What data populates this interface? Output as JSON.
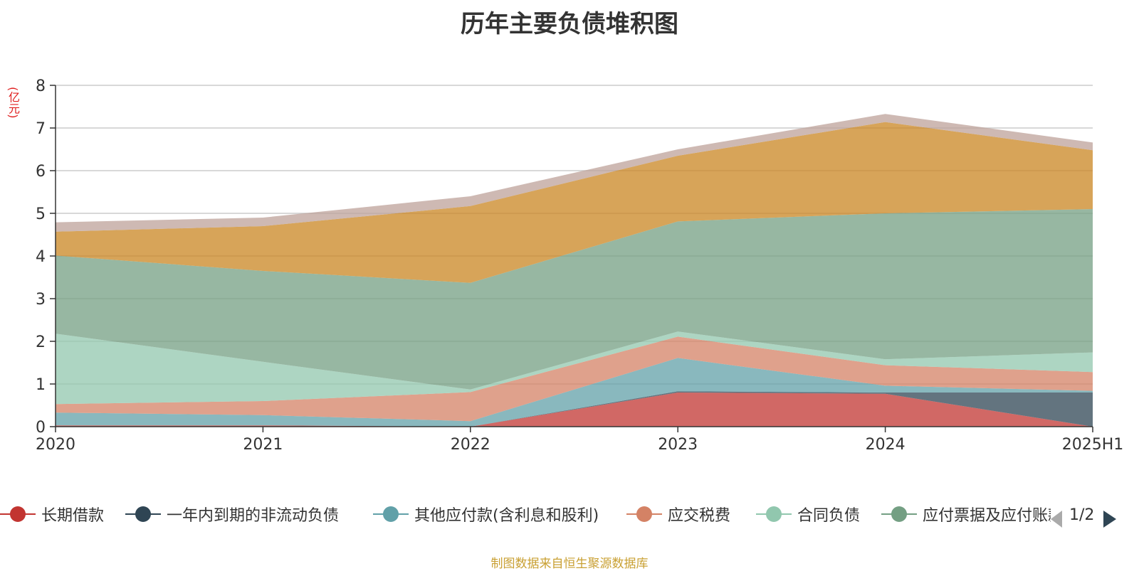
{
  "title": "历年主要负债堆积图",
  "unit": "(亿元)",
  "source": "制图数据来自恒生聚源数据库",
  "pager": "1/2",
  "chart_data": {
    "type": "area",
    "stacked": true,
    "categories": [
      "2020",
      "2021",
      "2022",
      "2023",
      "2024",
      "2025H1"
    ],
    "ylim": [
      0,
      8
    ],
    "yticks": [
      0,
      1,
      2,
      3,
      4,
      5,
      6,
      7,
      8
    ],
    "grid": true,
    "legend_position": "bottom",
    "series": [
      {
        "name": "长期借款",
        "color": "#c23531",
        "values": [
          0.03,
          0.03,
          0.0,
          0.8,
          0.77,
          0.0
        ]
      },
      {
        "name": "一年内到期的非流动负债",
        "color": "#2f4554",
        "values": [
          0.0,
          0.0,
          0.0,
          0.03,
          0.03,
          0.8
        ]
      },
      {
        "name": "其他应付款(含利息和股利)",
        "color": "#61a0a8",
        "values": [
          0.3,
          0.24,
          0.13,
          0.78,
          0.16,
          0.04
        ]
      },
      {
        "name": "应交税费",
        "color": "#d48265",
        "values": [
          0.2,
          0.33,
          0.68,
          0.5,
          0.48,
          0.44
        ]
      },
      {
        "name": "合同负债",
        "color": "#91c7ae",
        "values": [
          1.65,
          0.92,
          0.06,
          0.12,
          0.14,
          0.46
        ]
      },
      {
        "name": "应付票据及应付账款",
        "color": "#749f83",
        "values": [
          1.83,
          2.13,
          2.5,
          2.58,
          3.42,
          3.36
        ]
      },
      {
        "name": "",
        "color": "#ca8622",
        "values": [
          0.56,
          1.05,
          1.8,
          1.54,
          2.14,
          1.38
        ]
      },
      {
        "name": "",
        "color": "#bda29a",
        "values": [
          0.22,
          0.2,
          0.23,
          0.15,
          0.19,
          0.18
        ]
      }
    ]
  }
}
